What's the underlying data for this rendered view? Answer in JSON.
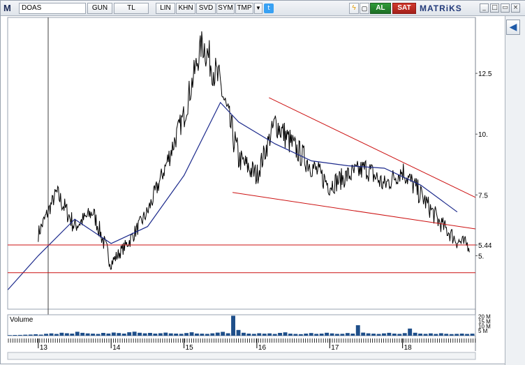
{
  "toolbar": {
    "app_logo": "M",
    "symbol": "DOAS",
    "period": "GUN",
    "currency": "TL",
    "scale": "LIN",
    "btn_khn": "KHN",
    "btn_svd": "SVD",
    "btn_sym": "SYM",
    "btn_tmp": "TMP",
    "buy_label": "AL",
    "sell_label": "SAT",
    "brand": "MATRiKS",
    "icons": [
      "dropdown-arrow-icon",
      "twitter-icon",
      "lightning-icon",
      "copy-icon",
      "back-arrow-icon",
      "window-buttons"
    ]
  },
  "colors": {
    "price": "#000000",
    "moving_average": "#1c2a8c",
    "trendline": "#cc1111",
    "volume": "#1f4f8a",
    "grid": "#c8c8c8"
  },
  "chart_data": [
    {
      "type": "line",
      "title": "",
      "series": [
        {
          "values_x": [
            "2013-01",
            "2013-04",
            "2013-07",
            "2013-10",
            "2014-01",
            "2014-04",
            "2014-07",
            "2014-10",
            "2015-01",
            "2015-04",
            "2015-07",
            "2015-10",
            "2016-01",
            "2016-04",
            "2016-07",
            "2016-10",
            "2017-01",
            "2017-04",
            "2017-07",
            "2017-10",
            "2018-01",
            "2018-04",
            "2018-07",
            "2018-10",
            "2018-12"
          ],
          "values": [
            5.9,
            7.6,
            6.2,
            6.8,
            4.7,
            5.6,
            6.8,
            8.7,
            10.8,
            13.8,
            12.0,
            9.0,
            8.3,
            10.5,
            9.5,
            8.7,
            7.9,
            8.3,
            8.6,
            7.9,
            8.5,
            7.5,
            6.4,
            5.6,
            5.44
          ]
        },
        {
          "values_x": [
            "2012-08",
            "2013-01",
            "2013-07",
            "2014-01",
            "2014-07",
            "2015-01",
            "2015-07",
            "2015-10",
            "2016-04",
            "2016-10",
            "2017-04",
            "2017-10",
            "2018-04",
            "2018-10"
          ],
          "values": [
            3.6,
            5.0,
            6.5,
            5.5,
            6.2,
            8.3,
            11.3,
            10.5,
            9.6,
            8.9,
            8.7,
            8.6,
            7.9,
            6.8
          ]
        }
      ],
      "x_tick_labels": [
        "13",
        "14",
        "15",
        "16",
        "17",
        "18"
      ],
      "y_tick_labels": [
        "12.5",
        "10.",
        "7.5",
        "5.44",
        "5."
      ],
      "ylim": [
        2.8,
        14.8
      ],
      "support_levels": [
        5.44,
        4.3
      ],
      "trendlines": [
        {
          "from": {
            "x": "2016-03",
            "y": 11.5
          },
          "to": {
            "x": "2019-01",
            "y": 7.4
          }
        },
        {
          "from": {
            "x": "2015-09",
            "y": 7.6
          },
          "to": {
            "x": "2019-01",
            "y": 6.1
          }
        }
      ],
      "grid": false
    },
    {
      "type": "bar",
      "title": "Volume",
      "y_tick_labels": [
        "20 M",
        "15 M",
        "10 M",
        "5 M"
      ],
      "ylim": [
        0,
        22
      ],
      "values": [
        0.6,
        0.7,
        0.8,
        1.0,
        1.2,
        1.5,
        1.1,
        2.0,
        2.4,
        1.8,
        3.1,
        2.6,
        2.2,
        4.1,
        3.0,
        2.4,
        2.1,
        1.8,
        2.9,
        2.3,
        3.3,
        2.8,
        2.2,
        3.6,
        4.2,
        3.1,
        2.5,
        2.9,
        2.2,
        2.6,
        3.2,
        2.4,
        2.2,
        2.0,
        2.8,
        3.6,
        2.3,
        2.1,
        1.9,
        2.5,
        3.2,
        4.0,
        2.6,
        21.0,
        6.0,
        3.1,
        2.2,
        1.9,
        2.6,
        2.1,
        2.4,
        1.8,
        2.9,
        3.5,
        2.1,
        1.8,
        1.6,
        2.2,
        2.8,
        1.9,
        2.2,
        3.1,
        2.4,
        1.9,
        2.0,
        2.8,
        2.2,
        11.0,
        3.2,
        2.5,
        2.1,
        1.8,
        2.4,
        3.0,
        2.2,
        1.9,
        2.7,
        7.5,
        3.1,
        2.2,
        1.9,
        2.4,
        1.8,
        2.6,
        2.0,
        1.7,
        1.9,
        2.2,
        1.8,
        2.1
      ]
    }
  ]
}
